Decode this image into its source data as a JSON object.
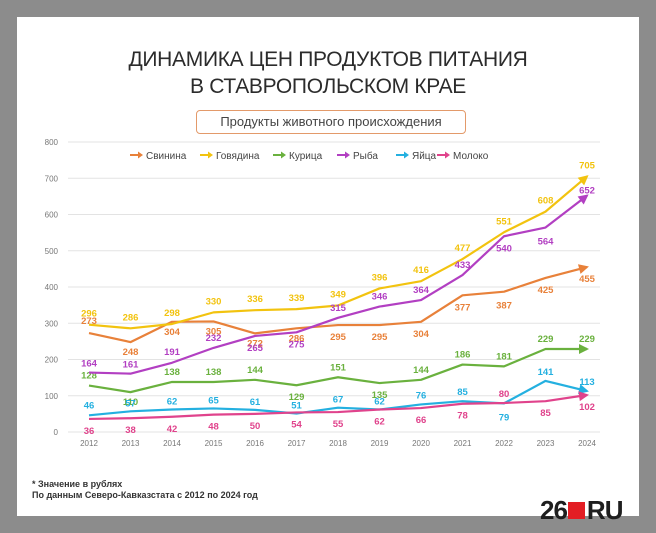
{
  "title_line1": "ДИНАМИКА ЦЕН ПРОДУКТОВ ПИТАНИЯ",
  "title_line2": "В СТАВРОПОЛЬСКОМ КРАЕ",
  "subtitle": "Продукты животного происхождения",
  "footnote_line1": "* Значение в рублях",
  "footnote_line2": "По данным Северо-Кавказстата с 2012 по 2024 год",
  "logo_num": "26",
  "logo_suffix": "RU",
  "chart_data": {
    "type": "line",
    "x": [
      "2012",
      "2013",
      "2014",
      "2015",
      "2016",
      "2017",
      "2018",
      "2019",
      "2020",
      "2021",
      "2022",
      "2023",
      "2024"
    ],
    "ylim": [
      0,
      800
    ],
    "yticks": [
      0,
      100,
      200,
      300,
      400,
      500,
      600,
      700,
      800
    ],
    "grid": true,
    "legend": "top",
    "series": [
      {
        "name": "Свинина",
        "color": "#e8813a",
        "values": [
          273,
          248,
          304,
          305,
          272,
          286,
          295,
          295,
          304,
          377,
          387,
          425,
          455
        ]
      },
      {
        "name": "Говядина",
        "color": "#f2c30f",
        "values": [
          296,
          286,
          298,
          330,
          336,
          339,
          349,
          396,
          416,
          477,
          551,
          608,
          705
        ]
      },
      {
        "name": "Курица",
        "color": "#6ab13e",
        "values": [
          128,
          110,
          138,
          138,
          144,
          129,
          151,
          135,
          144,
          186,
          181,
          229,
          229
        ]
      },
      {
        "name": "Рыба",
        "color": "#b23fc2",
        "values": [
          164,
          161,
          191,
          232,
          265,
          275,
          315,
          346,
          364,
          433,
          540,
          564,
          652
        ]
      },
      {
        "name": "Яйца",
        "color": "#24b0e0",
        "values": [
          46,
          57,
          62,
          65,
          61,
          51,
          67,
          62,
          76,
          85,
          79,
          141,
          113
        ]
      },
      {
        "name": "Молоко",
        "color": "#e0438c",
        "values": [
          36,
          38,
          42,
          48,
          50,
          54,
          55,
          62,
          66,
          78,
          80,
          85,
          102
        ]
      }
    ]
  }
}
